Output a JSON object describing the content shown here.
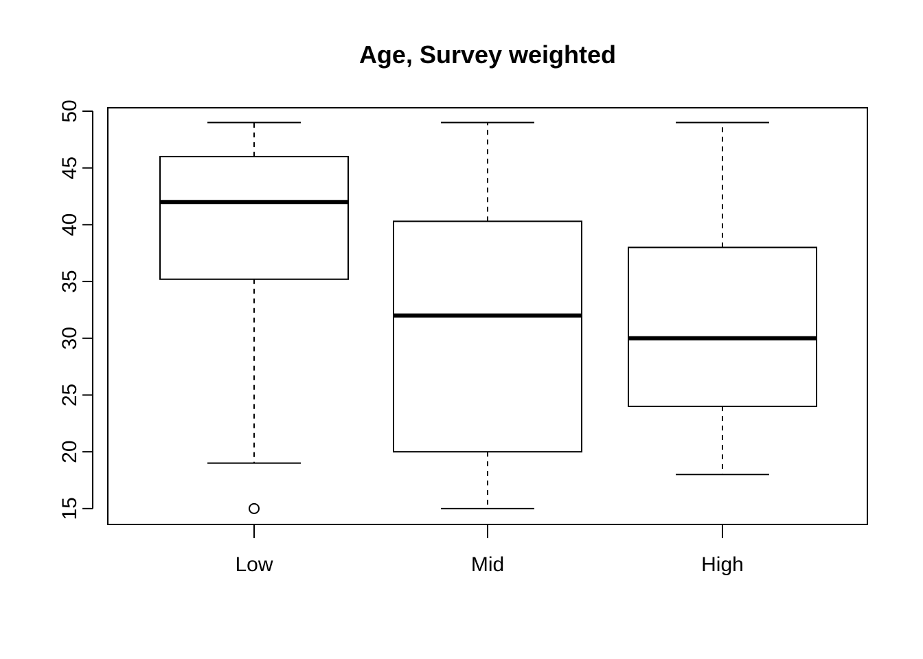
{
  "chart_data": {
    "type": "boxplot",
    "title": "Age, Survey weighted",
    "xlabel": "",
    "ylabel": "",
    "categories": [
      "Low",
      "Mid",
      "High"
    ],
    "boxes": [
      {
        "category": "Low",
        "whisker_low": 19,
        "q1": 35.2,
        "median": 42,
        "q3": 46,
        "whisker_high": 49,
        "outliers": [
          15
        ]
      },
      {
        "category": "Mid",
        "whisker_low": 15,
        "q1": 20,
        "median": 32,
        "q3": 40.3,
        "whisker_high": 49,
        "outliers": []
      },
      {
        "category": "High",
        "whisker_low": 18,
        "q1": 24,
        "median": 30,
        "q3": 38,
        "whisker_high": 49,
        "outliers": []
      }
    ],
    "yticks": [
      15,
      20,
      25,
      30,
      35,
      40,
      45,
      50
    ],
    "ylim": [
      13.6,
      50.3
    ],
    "grid": false,
    "legend": "none"
  }
}
